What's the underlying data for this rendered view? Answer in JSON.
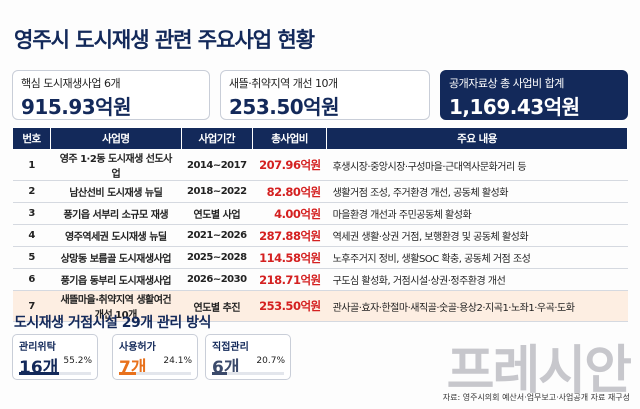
{
  "header": {
    "title": "영주시 도시재생 관련 주요사업 현황"
  },
  "summary": [
    {
      "label": "핵심 도시재생사업 6개",
      "value": "915.93억원"
    },
    {
      "label": "새뜰·취약지역 개선 10개",
      "value": "253.50억원"
    },
    {
      "label": "공개자료상 총 사업비 합계",
      "value": "1,169.43억원"
    }
  ],
  "table": {
    "columns": [
      "번호",
      "사업명",
      "사업기간",
      "총사업비",
      "주요 내용"
    ],
    "rows": [
      [
        "1",
        "영주 1·2동 도시재생 선도사업",
        "2014~2017",
        "207.96억원",
        "후생시장·중앙시장·구성마을·근대역사문화거리 등"
      ],
      [
        "2",
        "남산선비 도시재생 뉴딜",
        "2018~2022",
        "82.80억원",
        "생활거점 조성, 주거환경 개선, 공동체 활성화"
      ],
      [
        "3",
        "풍기읍 서부리 소규모 재생",
        "연도별 사업",
        "4.00억원",
        "마을환경 개선과 주민공동체 활성화"
      ],
      [
        "4",
        "영주역세권 도시재생 뉴딜",
        "2021~2026",
        "287.88억원",
        "역세권 생활·상권 거점, 보행환경 및 공동체 활성화"
      ],
      [
        "5",
        "상망동 보름골 도시재생사업",
        "2025~2028",
        "114.58억원",
        "노후주거지 정비, 생활SOC 확충, 공동체 거점 조성"
      ],
      [
        "6",
        "풍기읍 동부리 도시재생사업",
        "2026~2030",
        "218.71억원",
        "구도심 활성화, 거점시설·상권·정주환경 개선"
      ],
      [
        "7",
        "새뜰마을·취약지역 생활여건 개선 10개",
        "연도별 추진",
        "253.50억원",
        "관사골·효자·한절마·새직골·숫골·용상2·지곡1·노좌1·우곡·도화"
      ]
    ]
  },
  "facilities": {
    "title": "도시재생 거점시설 29개 관리 방식",
    "items": [
      {
        "label": "관리위탁",
        "count": "16개",
        "share": {
          "value": 55.2,
          "label": "55.2%"
        }
      },
      {
        "label": "사용허가",
        "count": "7개",
        "share": {
          "value": 24.1,
          "label": "24.1%"
        }
      },
      {
        "label": "직접관리",
        "count": "6개",
        "share": {
          "value": 20.7,
          "label": "20.7%"
        }
      }
    ]
  },
  "watermark": "프레시안",
  "source": "자료: 영주시의회 예산서·업무보고·사업공개 자료 재구성"
}
